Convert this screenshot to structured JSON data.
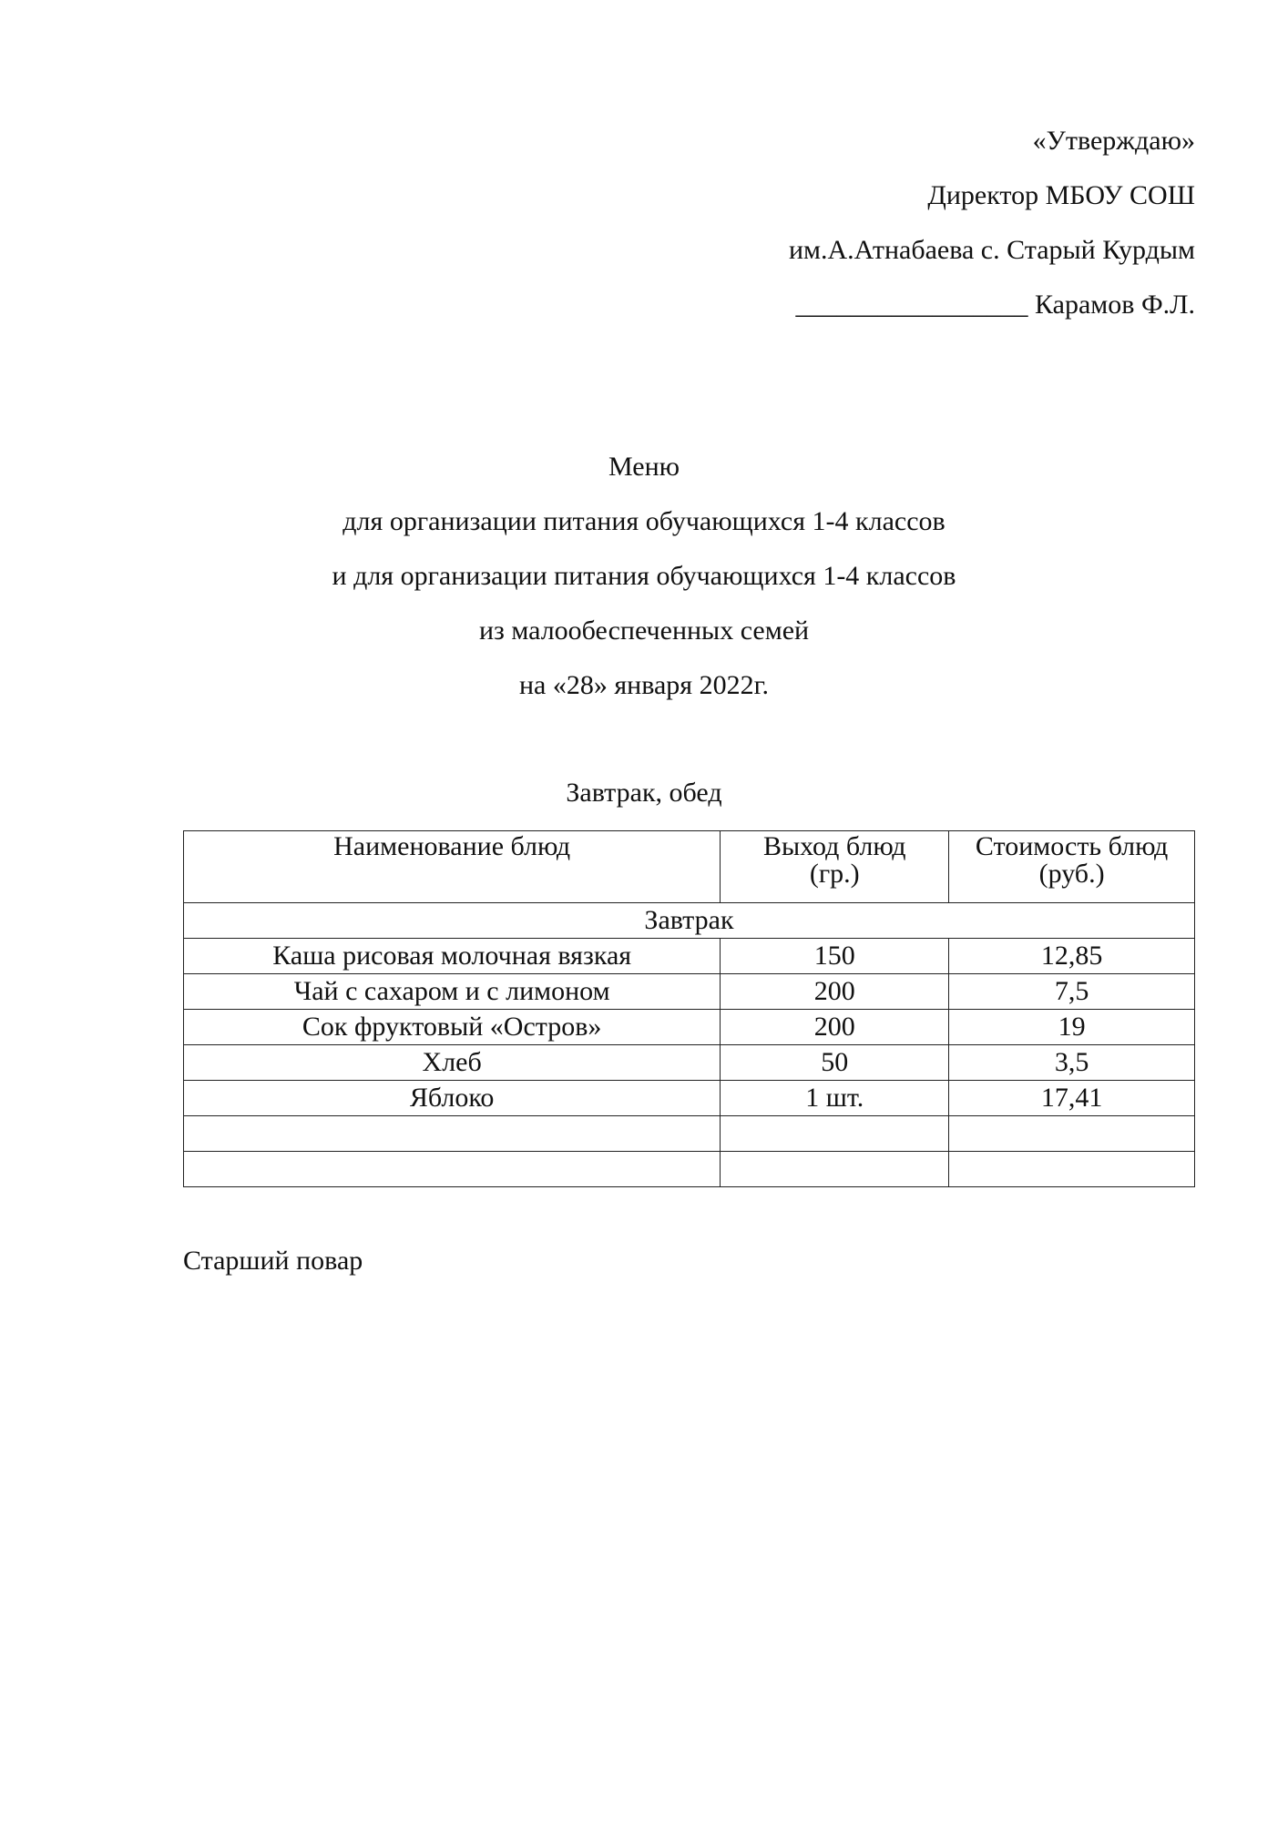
{
  "approval": {
    "line1": "«Утверждаю»",
    "line2": "Директор МБОУ СОШ",
    "line3": "им.А.Атнабаева с. Старый Курдым",
    "line4": "_________________ Карамов Ф.Л."
  },
  "title": {
    "line1": "Меню",
    "line2": "для организации питания обучающихся 1-4 классов",
    "line3": "и для организации питания обучающихся 1-4 классов",
    "line4": "из малообеспеченных семей",
    "line5": "на «28» января 2022г."
  },
  "table_caption": "Завтрак, обед",
  "table": {
    "headers": [
      "Наименование блюд",
      "Выход блюд (гр.)",
      "Стоимость блюд (руб.)"
    ],
    "section": "Завтрак",
    "rows": [
      [
        "Каша рисовая молочная вязкая",
        "150",
        "12,85"
      ],
      [
        "Чай с сахаром и с лимоном",
        "200",
        "7,5"
      ],
      [
        "Сок фруктовый «Остров»",
        "200",
        "19"
      ],
      [
        "Хлеб",
        "50",
        "3,5"
      ],
      [
        "Яблоко",
        "1 шт.",
        "17,41"
      ],
      [
        "",
        "",
        ""
      ],
      [
        "",
        "",
        ""
      ]
    ]
  },
  "footer": "Старший повар"
}
